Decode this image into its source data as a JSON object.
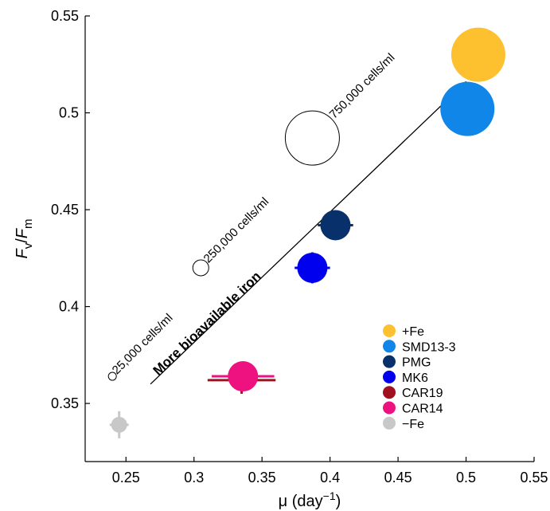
{
  "chart_data": {
    "type": "scatter",
    "xlabel_base": "μ (day",
    "xlabel_exp": "−1",
    "xlabel_close": ")",
    "ylabel_f1": "F",
    "ylabel_sub1": "v",
    "ylabel_slash": "/",
    "ylabel_f2": "F",
    "ylabel_sub2": "m",
    "xlim": [
      0.22,
      0.55
    ],
    "ylim": [
      0.32,
      0.55
    ],
    "xticks": [
      0.25,
      0.3,
      0.35,
      0.4,
      0.45,
      0.5,
      0.55
    ],
    "xtick_labels": [
      "0.25",
      "0.3",
      "0.35",
      "0.4",
      "0.45",
      "0.5",
      "0.55"
    ],
    "yticks": [
      0.35,
      0.4,
      0.45,
      0.5,
      0.55
    ],
    "ytick_labels": [
      "0.35",
      "0.4",
      "0.45",
      "0.5",
      "0.55"
    ],
    "grid": false,
    "legend_position": "lower-right",
    "series": [
      {
        "name": "+Fe",
        "color": "#FDC02F",
        "x": 0.509,
        "y": 0.53,
        "size": "large",
        "xerr": 0.017,
        "yerr": 0
      },
      {
        "name": "SMD13-3",
        "color": "#0F86E8",
        "x": 0.501,
        "y": 0.502,
        "size": "large",
        "xerr": 0,
        "yerr": 0
      },
      {
        "name": "PMG",
        "color": "#08306B",
        "x": 0.404,
        "y": 0.442,
        "size": "medium",
        "xerr": 0.013,
        "yerr": 0
      },
      {
        "name": "MK6",
        "color": "#0000EE",
        "x": 0.387,
        "y": 0.42,
        "size": "medium",
        "xerr": 0.013,
        "yerr": 0.008
      },
      {
        "name": "CAR19",
        "color": "#A0101E",
        "x": 0.335,
        "y": 0.362,
        "size": "small",
        "xerr": 0.025,
        "yerr": 0.007
      },
      {
        "name": "CAR14",
        "color": "#EE1180",
        "x": 0.336,
        "y": 0.364,
        "size": "medium",
        "xerr": 0.023,
        "yerr": 0
      },
      {
        "name": "−Fe",
        "color": "#C8C8C8",
        "x": 0.245,
        "y": 0.339,
        "size": "small",
        "xerr": 0.007,
        "yerr": 0.007
      }
    ],
    "reference_points": [
      {
        "label": "25,000 cells/ml",
        "x": 0.24,
        "y": 0.364,
        "size": "tiny"
      },
      {
        "label": "250,000 cells/ml",
        "x": 0.305,
        "y": 0.42,
        "size": "small"
      },
      {
        "label": "750,000 cells/ml",
        "x": 0.387,
        "y": 0.487,
        "size": "large"
      }
    ],
    "arrow": {
      "label": "More bioavailable iron",
      "from": [
        0.268,
        0.36
      ],
      "to": [
        0.5,
        0.516
      ]
    }
  }
}
